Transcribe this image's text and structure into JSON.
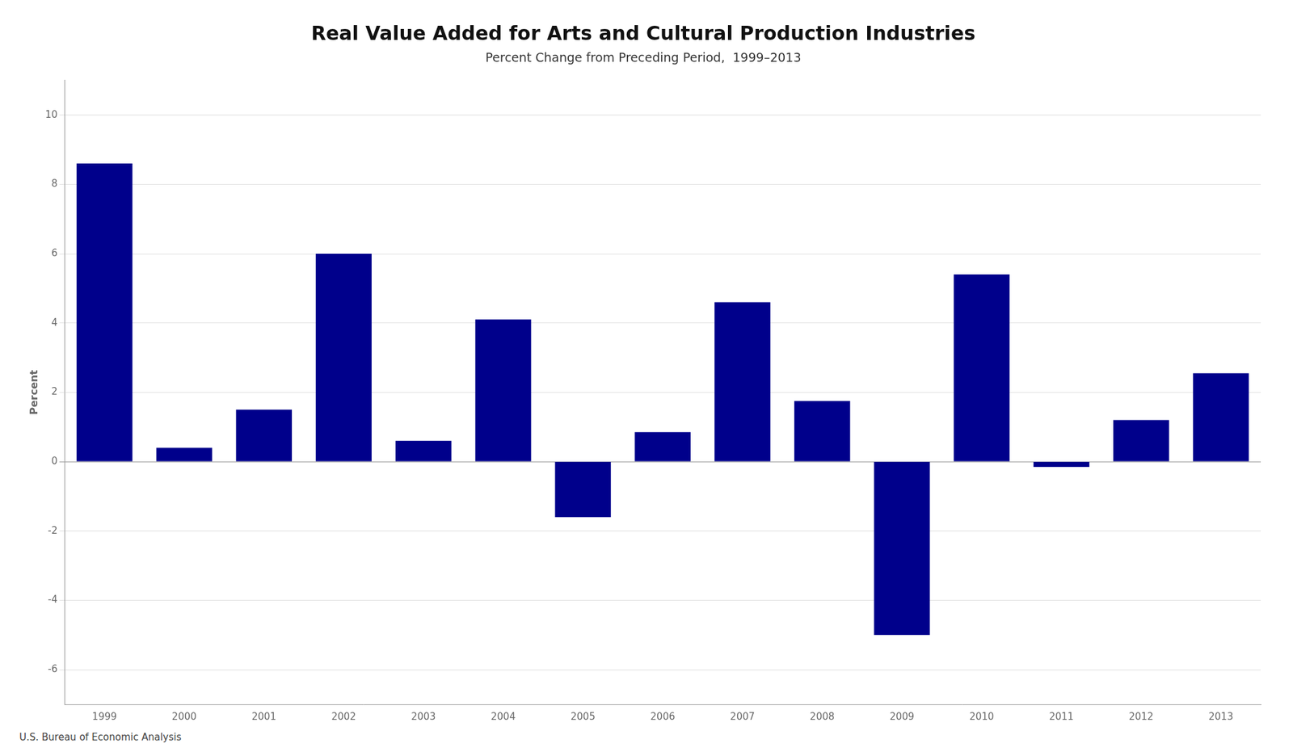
{
  "chart_data": {
    "type": "bar",
    "title": "Real Value Added for Arts and Cultural Production Industries",
    "subtitle": "Percent Change from Preceding Period,  1999–2013",
    "ylabel": "Percent",
    "source": "U.S. Bureau of Economic Analysis",
    "categories": [
      "1999",
      "2000",
      "2001",
      "2002",
      "2003",
      "2004",
      "2005",
      "2006",
      "2007",
      "2008",
      "2009",
      "2010",
      "2011",
      "2012",
      "2013"
    ],
    "values": [
      8.6,
      0.4,
      1.5,
      6.0,
      0.6,
      4.1,
      -1.6,
      0.85,
      4.6,
      1.75,
      -5.0,
      5.4,
      -0.15,
      1.2,
      2.55
    ],
    "color": "#00008B",
    "ylim": [
      -7,
      11
    ],
    "yticks": [
      -6,
      -4,
      -2,
      0,
      2,
      4,
      6,
      8,
      10
    ],
    "grid": true
  }
}
